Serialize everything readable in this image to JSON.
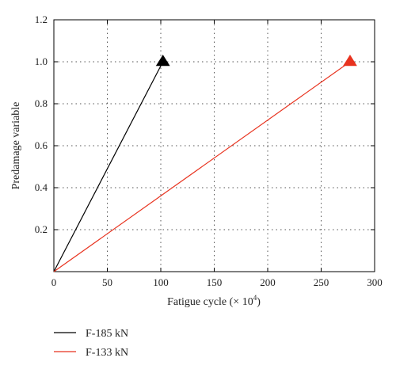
{
  "chart_data": {
    "type": "line",
    "xlabel_main": "Fatigue cycle (× 10",
    "xlabel_exp": "4",
    "xlabel_close": ")",
    "ylabel": "Predamage variable",
    "xlim": [
      0,
      300
    ],
    "ylim": [
      0,
      1.2
    ],
    "xticks": [
      0,
      50,
      100,
      150,
      200,
      250,
      300
    ],
    "yticks": [
      0.2,
      0.4,
      0.6,
      0.8,
      1.0,
      1.2
    ],
    "xtick_labels": [
      "0",
      "50",
      "100",
      "150",
      "200",
      "250",
      "300"
    ],
    "ytick_labels": [
      "0.2",
      "0.4",
      "0.6",
      "0.8",
      "1.0",
      "1.2"
    ],
    "grid": true,
    "legend_position": "bottom-left, below plot",
    "series": [
      {
        "name": "F-185 kN",
        "color": "#000000",
        "marker": "triangle",
        "x": [
          0,
          102
        ],
        "y": [
          0,
          1.0
        ]
      },
      {
        "name": "F-133 kN",
        "color": "#e8321e",
        "marker": "triangle",
        "x": [
          0,
          277
        ],
        "y": [
          0,
          1.0
        ]
      }
    ]
  }
}
